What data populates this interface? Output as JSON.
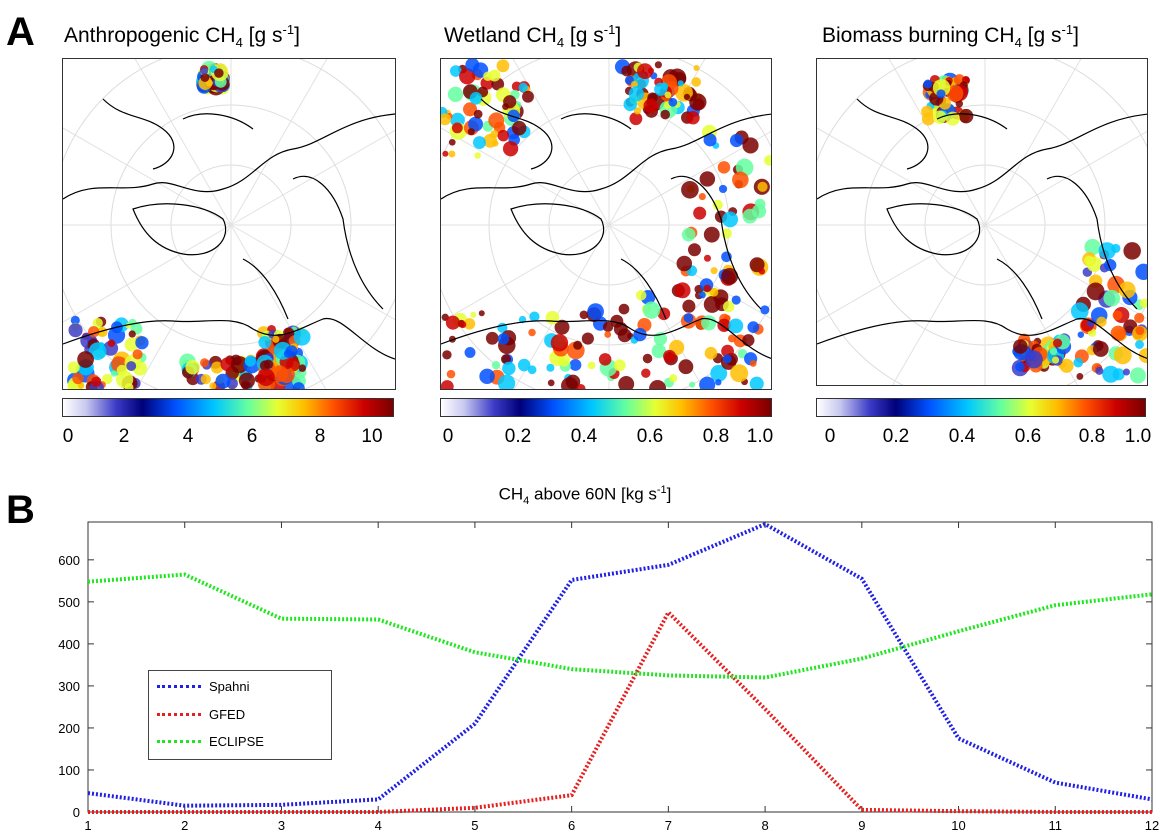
{
  "panels": {
    "a_letter": "A",
    "b_letter": "B"
  },
  "maps": [
    {
      "title_main": "Anthropogenic CH",
      "title_sub": "4",
      "title_unit_pre": " [g s",
      "title_unit_sup": "-1",
      "title_unit_post": "]",
      "colorbar_ticks": [
        "0",
        "2",
        "4",
        "6",
        "8",
        "10"
      ]
    },
    {
      "title_main": "Wetland CH",
      "title_sub": "4",
      "title_unit_pre": " [g s",
      "title_unit_sup": "-1",
      "title_unit_post": "]",
      "colorbar_ticks": [
        "0",
        "0.2",
        "0.4",
        "0.6",
        "0.8",
        "1.0"
      ]
    },
    {
      "title_main": "Biomass burning CH",
      "title_sub": "4",
      "title_unit_pre": " [g s",
      "title_unit_sup": "-1",
      "title_unit_post": "]",
      "colorbar_ticks": [
        "0",
        "0.2",
        "0.4",
        "0.6",
        "0.8",
        "1.0"
      ]
    }
  ],
  "chart_data": {
    "type": "line",
    "title_main": "CH",
    "title_sub": "4",
    "title_rest_pre": " above 60N [kg s",
    "title_sup": "-1",
    "title_rest_post": "]",
    "x": [
      1,
      2,
      3,
      4,
      5,
      6,
      7,
      8,
      9,
      10,
      11,
      12
    ],
    "x_ticks": [
      "1",
      "2",
      "3",
      "4",
      "5",
      "6",
      "7",
      "8",
      "9",
      "10",
      "11",
      "12"
    ],
    "y_ticks": [
      "0",
      "100",
      "200",
      "300",
      "400",
      "500",
      "600"
    ],
    "xlim": [
      1,
      12
    ],
    "ylim": [
      0,
      690
    ],
    "grid": false,
    "legend_position": "middle-left",
    "series": [
      {
        "name": "Spahni",
        "color": "#2020e6",
        "values": [
          45,
          15,
          17,
          30,
          210,
          552,
          588,
          685,
          555,
          175,
          70,
          30
        ]
      },
      {
        "name": "GFED",
        "color": "#e62020",
        "values": [
          0,
          0,
          0,
          0,
          10,
          40,
          475,
          245,
          5,
          2,
          0,
          0
        ]
      },
      {
        "name": "ECLIPSE",
        "color": "#20e620",
        "values": [
          548,
          565,
          460,
          458,
          380,
          340,
          325,
          320,
          365,
          430,
          492,
          518
        ]
      }
    ]
  }
}
